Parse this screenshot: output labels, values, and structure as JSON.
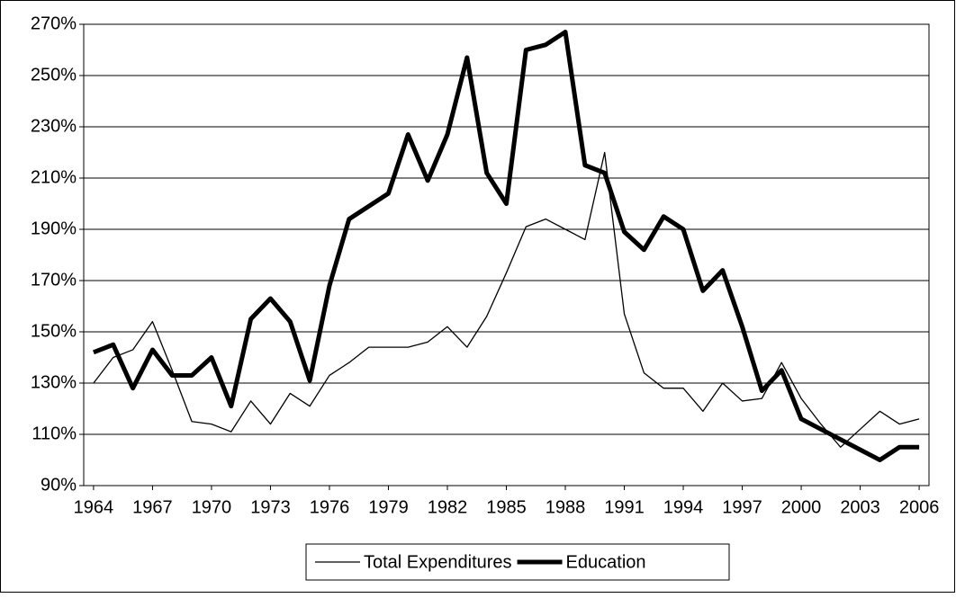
{
  "chart_data": {
    "type": "line",
    "x": [
      1964,
      1965,
      1966,
      1967,
      1968,
      1969,
      1970,
      1971,
      1972,
      1973,
      1974,
      1975,
      1976,
      1977,
      1978,
      1979,
      1980,
      1981,
      1982,
      1983,
      1984,
      1985,
      1986,
      1987,
      1988,
      1989,
      1990,
      1991,
      1992,
      1993,
      1994,
      1995,
      1996,
      1997,
      1998,
      1999,
      2000,
      2001,
      2002,
      2003,
      2004,
      2005,
      2006
    ],
    "series": [
      {
        "name": "Total Expenditures",
        "color": "#000000",
        "width": 1.3,
        "values": [
          130,
          140,
          143,
          154,
          135,
          115,
          114,
          111,
          123,
          114,
          126,
          121,
          133,
          138,
          144,
          144,
          144,
          146,
          152,
          144,
          156,
          173,
          191,
          194,
          190,
          186,
          220,
          157,
          134,
          128,
          128,
          119,
          130,
          123,
          124,
          138,
          124,
          114,
          105,
          112,
          119,
          114,
          116
        ]
      },
      {
        "name": "Education",
        "color": "#000000",
        "width": 5,
        "values": [
          142,
          145,
          128,
          143,
          133,
          133,
          140,
          121,
          155,
          163,
          154,
          131,
          168,
          194,
          199,
          204,
          227,
          209,
          227,
          257,
          212,
          200,
          260,
          262,
          267,
          215,
          212,
          189,
          182,
          195,
          190,
          166,
          174,
          152,
          127,
          135,
          116,
          112,
          108,
          104,
          100,
          105,
          105
        ]
      }
    ],
    "xlim": [
      1963.5,
      2006.5
    ],
    "xticks": [
      1964,
      1967,
      1970,
      1973,
      1976,
      1979,
      1982,
      1985,
      1988,
      1991,
      1994,
      1997,
      2000,
      2003,
      2006
    ],
    "ylim": [
      90,
      270
    ],
    "yticks": [
      {
        "value": 90,
        "label": "90%"
      },
      {
        "value": 110,
        "label": "110%"
      },
      {
        "value": 130,
        "label": "130%"
      },
      {
        "value": 150,
        "label": "150%"
      },
      {
        "value": 170,
        "label": "170%"
      },
      {
        "value": 190,
        "label": "190%"
      },
      {
        "value": 210,
        "label": "210%"
      },
      {
        "value": 230,
        "label": "230%"
      },
      {
        "value": 250,
        "label": "250%"
      },
      {
        "value": 270,
        "label": "270%"
      }
    ],
    "grid": true,
    "legend": "bottom"
  }
}
